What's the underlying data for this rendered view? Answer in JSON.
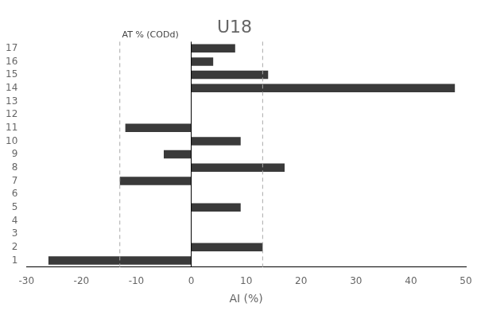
{
  "chart_data": {
    "type": "bar",
    "orientation": "horizontal",
    "title": "U18",
    "x_label": "AI (%)",
    "categories": [
      "1",
      "2",
      "3",
      "4",
      "5",
      "6",
      "7",
      "8",
      "9",
      "10",
      "11",
      "12",
      "13",
      "14",
      "15",
      "16",
      "17"
    ],
    "values": [
      -26,
      13,
      0,
      0,
      9,
      0,
      -13,
      17,
      -5,
      9,
      -12,
      0,
      0,
      48,
      14,
      4,
      8
    ],
    "color": "#3a3a3a",
    "xlim": [
      -30,
      50
    ],
    "xticks": [
      -30,
      -20,
      -10,
      0,
      10,
      20,
      30,
      40,
      50
    ],
    "reference_lines": [
      {
        "x": -13,
        "color": "#aaaaaa",
        "line_style": "dashed"
      },
      {
        "x": 13,
        "color": "#aaaaaa",
        "line_style": "dashed"
      }
    ],
    "annotations": [
      {
        "text": "AT % (CODd)",
        "x": -12.6
      }
    ],
    "grid": false
  }
}
